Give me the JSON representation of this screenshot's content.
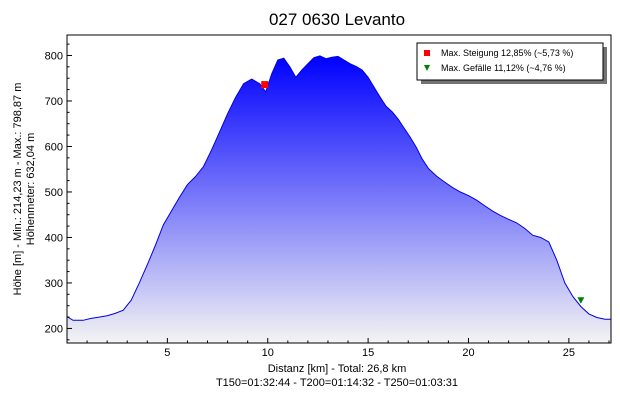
{
  "chart_data": {
    "type": "area",
    "title": "027 0630 Levanto",
    "ylabel": "Höhe [m] - Min.: 214,23 m - Max.: 798,87 m",
    "ylabel2": "Höhenmeter: 632,04 m",
    "xlabel": "Distanz [km] - Total: 26,8 km",
    "xlabel2": "T150=01:32:44 - T200=01:14:32 - T250=01:03:31",
    "xlim": [
      0,
      27.1
    ],
    "ylim": [
      168,
      845
    ],
    "xticks": [
      5,
      10,
      15,
      20,
      25
    ],
    "yticks": [
      200,
      300,
      400,
      500,
      600,
      700,
      800
    ],
    "series": [
      {
        "x": [
          0,
          0.3,
          0.8,
          1.2,
          1.6,
          2.0,
          2.4,
          2.8,
          3.2,
          3.6,
          4.0,
          4.4,
          4.8,
          5.2,
          5.6,
          6.0,
          6.4,
          6.8,
          7.2,
          7.6,
          8.0,
          8.4,
          8.8,
          9.2,
          9.6,
          9.9,
          10.2,
          10.5,
          10.8,
          11.1,
          11.4,
          11.7,
          12.0,
          12.3,
          12.6,
          12.9,
          13.2,
          13.5,
          13.8,
          14.1,
          14.4,
          14.7,
          15.0,
          15.3,
          15.6,
          15.9,
          16.2,
          16.5,
          16.8,
          17.1,
          17.4,
          17.7,
          18.0,
          18.4,
          18.8,
          19.2,
          19.6,
          20.0,
          20.4,
          20.8,
          21.2,
          21.6,
          22.0,
          22.4,
          22.8,
          23.2,
          23.6,
          24.0,
          24.4,
          24.8,
          25.2,
          25.6,
          26.0,
          26.4,
          26.8,
          27.1
        ],
        "y": [
          226,
          218,
          218,
          222,
          225,
          228,
          233,
          240,
          262,
          300,
          340,
          382,
          428,
          458,
          488,
          516,
          534,
          556,
          592,
          632,
          672,
          708,
          738,
          748,
          738,
          720,
          760,
          790,
          794,
          775,
          752,
          768,
          782,
          795,
          799,
          793,
          796,
          798,
          790,
          782,
          776,
          768,
          752,
          730,
          708,
          688,
          676,
          660,
          640,
          620,
          598,
          572,
          552,
          535,
          522,
          510,
          500,
          492,
          482,
          470,
          458,
          448,
          440,
          432,
          420,
          405,
          400,
          390,
          350,
          300,
          270,
          248,
          232,
          224,
          220,
          220
        ]
      }
    ],
    "markers": [
      {
        "label": "Max. Steigung 12,85% (~5,73 %)",
        "x": 9.85,
        "y": 736,
        "color": "#ff0000",
        "shape": "square"
      },
      {
        "label": "Max. Gefälle 11,12% (~4,76 %)",
        "x": 25.6,
        "y": 262,
        "color": "#008000",
        "shape": "triangle-down"
      }
    ],
    "legend_position": "top-right",
    "colors": {
      "fill_top": "#0000ff",
      "fill_bottom": "#f4f4f4",
      "line": "#0000e0"
    }
  }
}
